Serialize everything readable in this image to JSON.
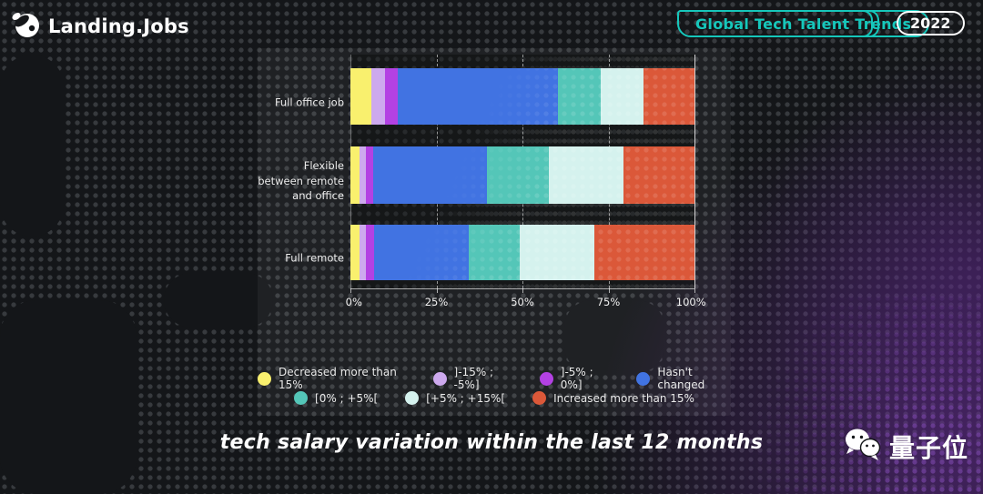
{
  "header": {
    "logo_text": "Landing.Jobs",
    "badge_label": "Global Tech Talent Trends",
    "year": "2022"
  },
  "chart_data": {
    "type": "bar",
    "orientation": "horizontal",
    "stacked": true,
    "title": "tech salary variation within the last 12 months",
    "categories": [
      "Full office job",
      "Flexible between remote and office",
      "Full remote"
    ],
    "series": [
      {
        "name": "Decreased more than 15%",
        "color": "#f9f06e",
        "values": [
          6.1,
          2.6,
          2.6
        ]
      },
      {
        "name": "]-15% ; -5%]",
        "color": "#cda9ee",
        "values": [
          4.0,
          2.0,
          1.8
        ]
      },
      {
        "name": "]-5% ; 0%]",
        "color": "#b341e3",
        "values": [
          3.7,
          2.0,
          2.4
        ]
      },
      {
        "name": "Hasn't changed",
        "color": "#4173e2",
        "values": [
          46.6,
          33.0,
          27.6
        ]
      },
      {
        "name": "[0% ; +5%[",
        "color": "#54c6b8",
        "values": [
          12.4,
          18.0,
          14.7
        ]
      },
      {
        "name": "[+5% ; +15%[",
        "color": "#d5f2ee",
        "values": [
          12.4,
          21.8,
          21.7
        ]
      },
      {
        "name": "Increased more than 15%",
        "color": "#db5839",
        "values": [
          14.8,
          20.6,
          29.2
        ]
      }
    ],
    "x_axis": {
      "range": [
        0,
        100
      ],
      "ticks": [
        "0%",
        "25%",
        "50%",
        "75%",
        "100%"
      ],
      "tick_positions": [
        0,
        25,
        50,
        75,
        100
      ]
    },
    "legend_position": "bottom",
    "legend_rows": [
      4,
      3
    ]
  },
  "title": "tech salary variation within the last 12 months",
  "watermark": {
    "text": "量子位",
    "icon": "wechat-icon"
  },
  "colors": {
    "accent_teal": "#16c7bb",
    "background": "#141619",
    "panel": "rgba(255,255,255,0.05)"
  }
}
